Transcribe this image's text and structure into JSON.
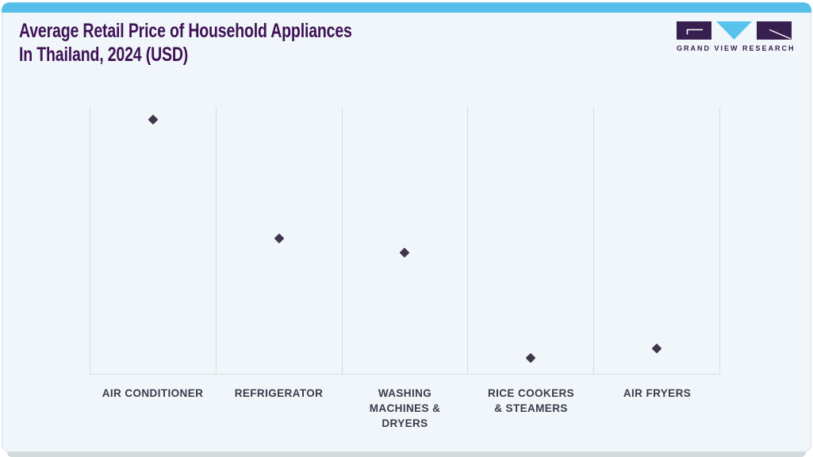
{
  "header": {
    "title_line1": "Average Retail Price of Household Appliances",
    "title_line2": "In Thailand, 2024 (USD)",
    "logo": {
      "brand_name": "GRAND VIEW RESEARCH",
      "icons": [
        "gvr-g-glyph",
        "gvr-v-triangle",
        "gvr-r-glyph"
      ]
    }
  },
  "chart_data": {
    "type": "scatter",
    "title": "Average Retail Price of Household Appliances In Thailand, 2024 (USD)",
    "categories": [
      "AIR CONDITIONER",
      "REFRIGERATOR",
      "WASHING MACHINES & DRYERS",
      "RICE COOKERS & STEAMERS",
      "AIR FRYERS"
    ],
    "category_label_lines": [
      [
        "AIR CONDITIONER"
      ],
      [
        "REFRIGERATOR"
      ],
      [
        "WASHING",
        "MACHINES &",
        "DRYERS"
      ],
      [
        "RICE COOKERS",
        "& STEAMERS"
      ],
      [
        "AIR FRYERS"
      ]
    ],
    "series": [
      {
        "name": "Average retail price",
        "unit": "percent of plot height (chart shows no numeric y-axis labels)",
        "values": [
          95.2,
          50.6,
          45.4,
          5.9,
          9.6
        ]
      }
    ],
    "xlabel": "",
    "ylabel": "",
    "ylim": [
      0,
      100
    ],
    "y_tick_labels_visible": false,
    "marker_shape": "diamond",
    "grid": "vertical category separators and bottom axis only",
    "legend": "none"
  },
  "colors": {
    "accent_bar": "#57bee9",
    "title_text": "#3e1254",
    "logo_purple": "#372050",
    "logo_blue": "#57c3ec",
    "marker": "#40364b",
    "grid_line": "#d9dde0",
    "category_label": "#3b3a4b",
    "card_background": "#f0f6fa",
    "card_border": "#d5e0e8",
    "bottom_shadow": "#d4d9dc"
  }
}
